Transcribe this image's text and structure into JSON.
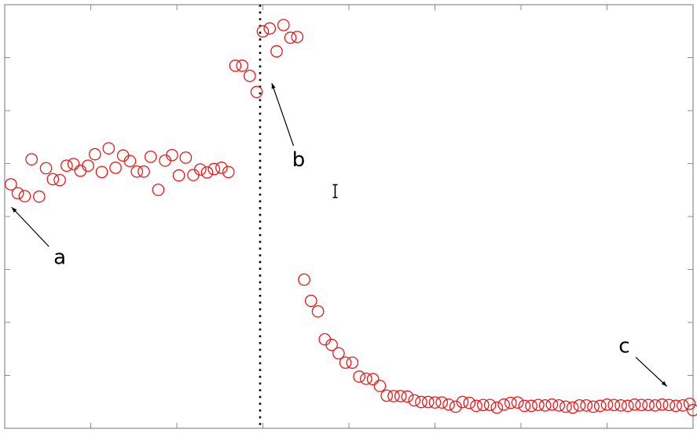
{
  "chart_data": {
    "type": "scatter",
    "title": "",
    "xlabel": "",
    "ylabel": "",
    "xlim": [
      0,
      100
    ],
    "ylim": [
      0,
      100
    ],
    "grid": false,
    "marker": "open-circle",
    "series": [
      {
        "color": "#e8191b",
        "points": [
          [
            0.9,
            57.6
          ],
          [
            1.9,
            55.5
          ],
          [
            2.9,
            54.8
          ],
          [
            3.9,
            63.5
          ],
          [
            5.0,
            54.7
          ],
          [
            6.0,
            61.4
          ],
          [
            7.0,
            58.8
          ],
          [
            8.0,
            58.6
          ],
          [
            9.0,
            62.0
          ],
          [
            10.0,
            62.4
          ],
          [
            11.0,
            60.8
          ],
          [
            12.1,
            62.0
          ],
          [
            13.1,
            64.7
          ],
          [
            14.1,
            60.5
          ],
          [
            15.1,
            66.1
          ],
          [
            16.1,
            61.5
          ],
          [
            17.2,
            64.4
          ],
          [
            18.2,
            63.1
          ],
          [
            19.2,
            60.6
          ],
          [
            20.2,
            60.6
          ],
          [
            21.2,
            64.1
          ],
          [
            22.3,
            56.3
          ],
          [
            23.3,
            63.2
          ],
          [
            24.3,
            64.5
          ],
          [
            25.3,
            59.7
          ],
          [
            26.3,
            63.9
          ],
          [
            27.4,
            59.8
          ],
          [
            28.4,
            61.1
          ],
          [
            29.4,
            60.4
          ],
          [
            30.4,
            61.2
          ],
          [
            31.5,
            61.5
          ],
          [
            32.5,
            60.5
          ],
          [
            33.5,
            85.6
          ],
          [
            34.5,
            85.6
          ],
          [
            35.6,
            83.2
          ],
          [
            36.6,
            79.4
          ],
          [
            37.5,
            93.7
          ],
          [
            38.5,
            94.4
          ],
          [
            39.5,
            89.0
          ],
          [
            40.5,
            95.2
          ],
          [
            41.5,
            92.2
          ],
          [
            42.5,
            92.4
          ],
          [
            43.5,
            35.1
          ],
          [
            44.5,
            30.1
          ],
          [
            45.5,
            27.6
          ],
          [
            46.5,
            21.0
          ],
          [
            47.5,
            19.7
          ],
          [
            48.5,
            17.7
          ],
          [
            49.5,
            15.5
          ],
          [
            50.5,
            15.5
          ],
          [
            51.5,
            12.2
          ],
          [
            52.5,
            11.7
          ],
          [
            53.5,
            11.6
          ],
          [
            54.5,
            10.0
          ],
          [
            55.5,
            7.7
          ],
          [
            56.5,
            7.6
          ],
          [
            57.5,
            7.6
          ],
          [
            58.5,
            7.5
          ],
          [
            59.5,
            6.6
          ],
          [
            60.5,
            6.2
          ],
          [
            61.5,
            6.2
          ],
          [
            62.5,
            6.1
          ],
          [
            63.5,
            6.1
          ],
          [
            64.5,
            5.6
          ],
          [
            65.5,
            5.1
          ],
          [
            66.5,
            6.2
          ],
          [
            67.5,
            6.0
          ],
          [
            68.5,
            5.3
          ],
          [
            69.5,
            5.5
          ],
          [
            70.5,
            5.5
          ],
          [
            71.5,
            4.9
          ],
          [
            72.5,
            5.6
          ],
          [
            73.5,
            6.0
          ],
          [
            74.5,
            6.1
          ],
          [
            75.5,
            5.3
          ],
          [
            76.5,
            5.3
          ],
          [
            77.5,
            5.5
          ],
          [
            78.5,
            5.4
          ],
          [
            79.5,
            5.6
          ],
          [
            80.5,
            5.4
          ],
          [
            81.5,
            5.1
          ],
          [
            82.5,
            4.9
          ],
          [
            83.5,
            5.4
          ],
          [
            84.5,
            5.4
          ],
          [
            85.5,
            5.1
          ],
          [
            86.5,
            5.3
          ],
          [
            87.5,
            5.6
          ],
          [
            88.5,
            5.5
          ],
          [
            89.5,
            5.4
          ],
          [
            90.5,
            5.3
          ],
          [
            91.5,
            5.6
          ],
          [
            92.5,
            5.5
          ],
          [
            93.5,
            5.5
          ],
          [
            94.5,
            5.4
          ],
          [
            95.5,
            5.6
          ],
          [
            96.5,
            5.5
          ],
          [
            97.5,
            5.3
          ],
          [
            98.5,
            5.4
          ],
          [
            99.5,
            5.8
          ],
          [
            100.0,
            4.3
          ]
        ]
      }
    ],
    "vertical_line": {
      "x": 37.1,
      "style": "dotted",
      "color": "#000000"
    },
    "error_bar": {
      "x": 48.0,
      "y": 56.0,
      "half_height": 1.5
    },
    "annotations": [
      {
        "text": "a",
        "x": 8.0,
        "y": 40.2,
        "arrow_to": [
          1.0,
          52.2
        ]
      },
      {
        "text": "b",
        "x": 42.7,
        "y": 63.2,
        "arrow_to": [
          38.8,
          81.5
        ]
      },
      {
        "text": "c",
        "x": 90.0,
        "y": 19.3,
        "arrow_to": [
          96.2,
          9.9
        ]
      }
    ]
  }
}
